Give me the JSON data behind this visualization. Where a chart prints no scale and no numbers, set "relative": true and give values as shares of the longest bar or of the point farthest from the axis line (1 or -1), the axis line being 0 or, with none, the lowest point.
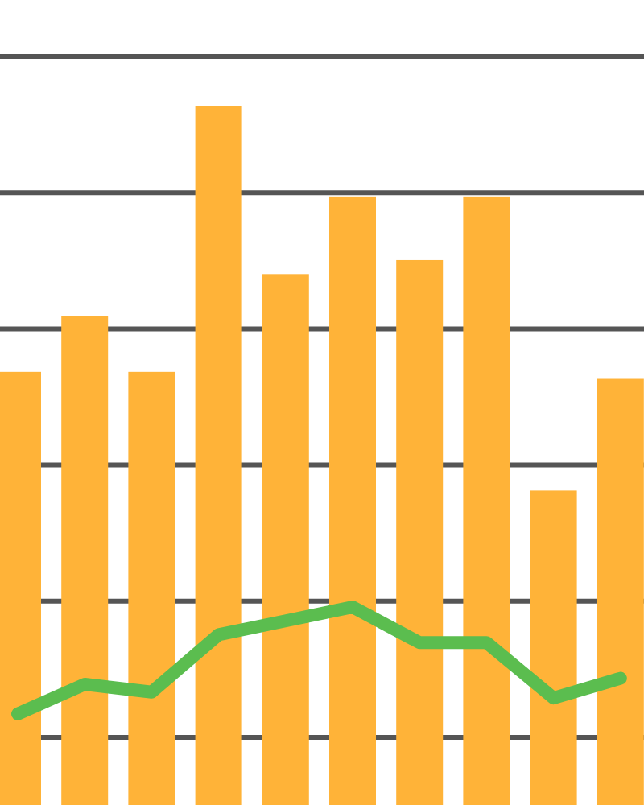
{
  "chart_data": [
    {
      "type": "bar",
      "relative": true,
      "grid": true,
      "categories": [
        null,
        null,
        null,
        null,
        null,
        null,
        null,
        null,
        null,
        null
      ],
      "color": "#ffb338",
      "values": [
        0.62,
        0.7,
        0.62,
        1,
        0.76,
        0.87,
        0.78,
        0.87,
        0.45,
        0.61
      ]
    },
    {
      "type": "line",
      "relative": true,
      "categories": [
        null,
        null,
        null,
        null,
        null,
        null,
        null,
        null,
        null,
        null
      ],
      "color": "#5bbd4f",
      "values": [
        0.46,
        0.61,
        0.57,
        0.86,
        0.93,
        1,
        0.82,
        0.82,
        0.54,
        0.64
      ]
    }
  ]
}
